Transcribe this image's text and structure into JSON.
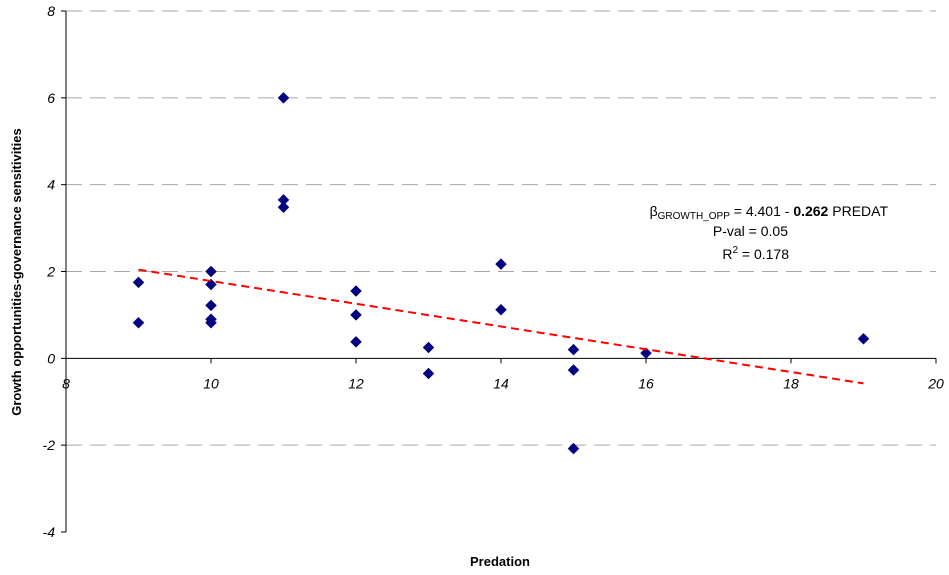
{
  "chart_data": {
    "type": "scatter",
    "xlabel": "Predation",
    "ylabel": "Growth opportunities-governance sensitivities",
    "xlim": [
      8,
      20
    ],
    "ylim": [
      -4,
      8
    ],
    "xticks": [
      "8",
      "10",
      "12",
      "14",
      "16",
      "18",
      "20"
    ],
    "yticks": [
      "-4",
      "-2",
      "0",
      "2",
      "4",
      "6",
      "8"
    ],
    "grid": "horizontal dashed",
    "marker_color": "#000080",
    "trend_color": "#ff0000",
    "points": [
      {
        "x": 9,
        "y": 1.75
      },
      {
        "x": 9,
        "y": 0.82
      },
      {
        "x": 10,
        "y": 2.0
      },
      {
        "x": 10,
        "y": 1.7
      },
      {
        "x": 10,
        "y": 1.22
      },
      {
        "x": 10,
        "y": 0.9
      },
      {
        "x": 10,
        "y": 0.82
      },
      {
        "x": 11,
        "y": 6.0
      },
      {
        "x": 11,
        "y": 3.65
      },
      {
        "x": 11,
        "y": 3.48
      },
      {
        "x": 12,
        "y": 1.55
      },
      {
        "x": 12,
        "y": 1.0
      },
      {
        "x": 12,
        "y": 0.38
      },
      {
        "x": 13,
        "y": 0.25
      },
      {
        "x": 13,
        "y": -0.35
      },
      {
        "x": 14,
        "y": 2.17
      },
      {
        "x": 14,
        "y": 1.12
      },
      {
        "x": 15,
        "y": 0.2
      },
      {
        "x": 15,
        "y": -0.27
      },
      {
        "x": 15,
        "y": -2.08
      },
      {
        "x": 16,
        "y": 0.12
      },
      {
        "x": 19,
        "y": 0.45
      }
    ],
    "trendline": {
      "x_start": 9,
      "x_end": 19,
      "intercept": 4.401,
      "slope": -0.262
    },
    "annotation": {
      "beta_symbol": "β",
      "beta_subscript": "GROWTH_OPP",
      "eq_prefix": " = 4.401 - ",
      "eq_bold": "0.262",
      "eq_suffix": " PREDAT",
      "pval": "P-val = 0.05",
      "r2_prefix": "R",
      "r2_sup": "2",
      "r2_suffix": " = 0.178"
    }
  }
}
